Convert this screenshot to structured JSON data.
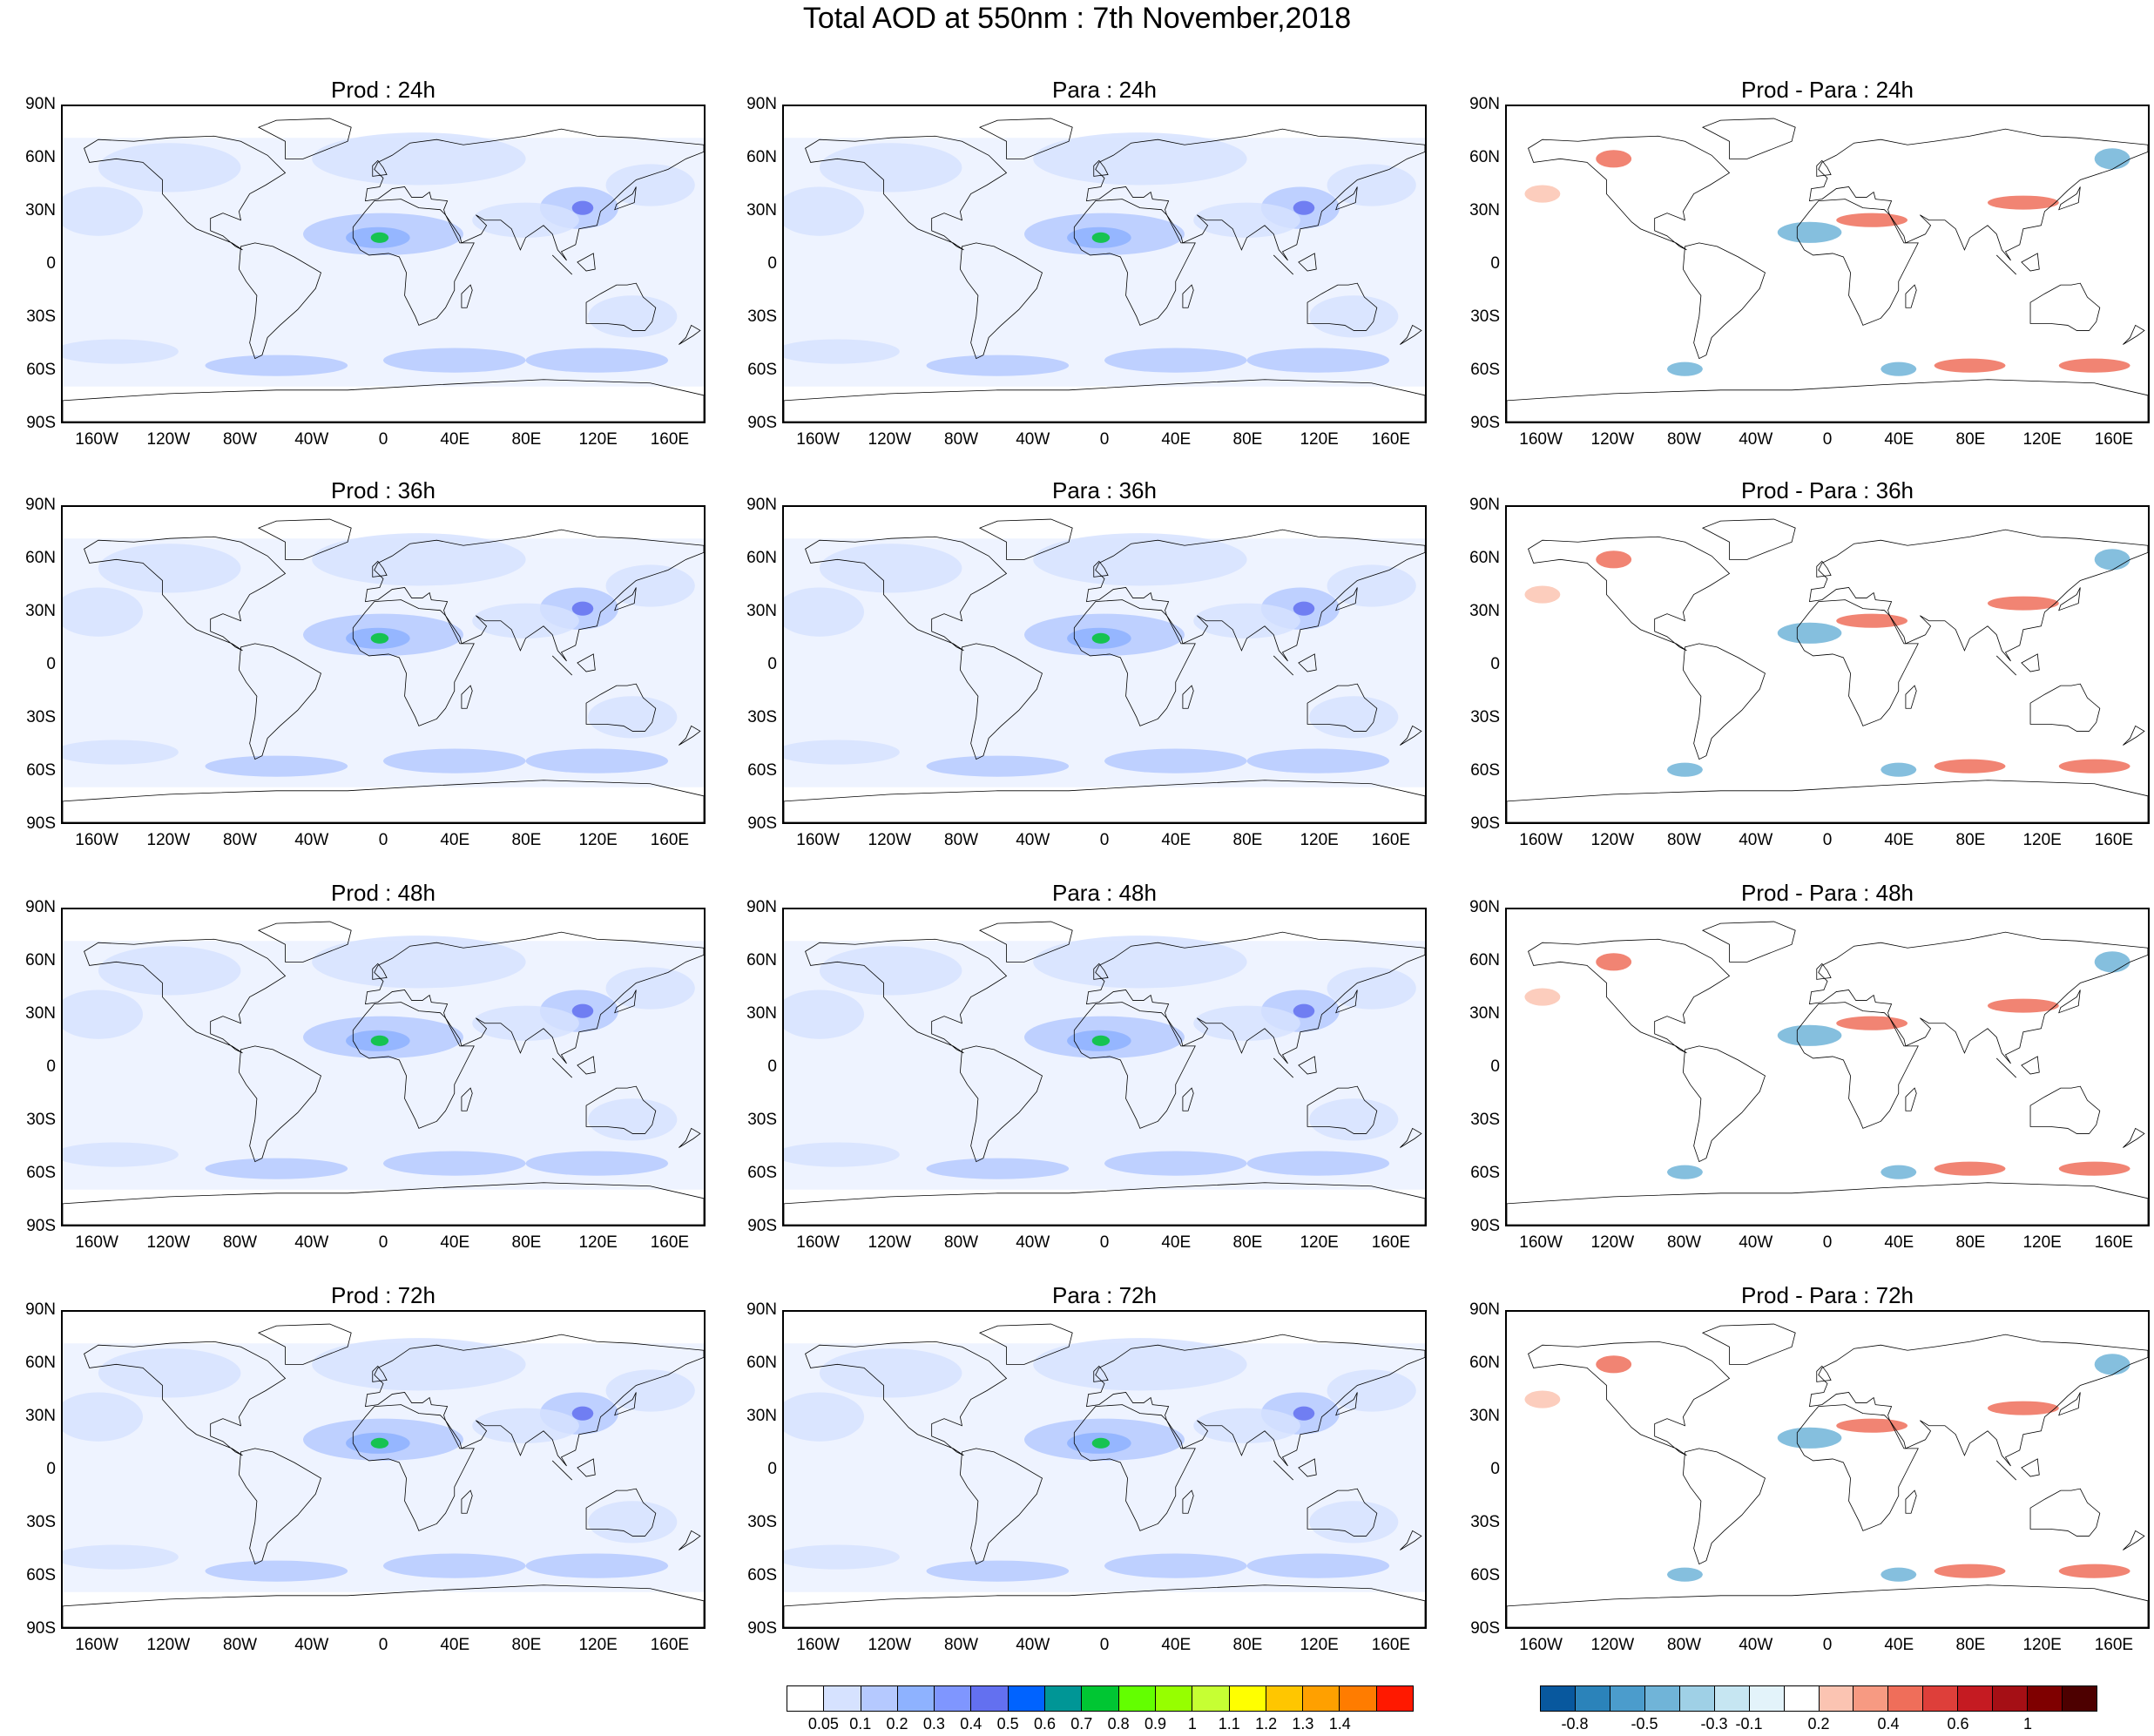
{
  "title": "Total AOD at 550nm : 7th November,2018",
  "lat_labels": [
    "90N",
    "60N",
    "30N",
    "0",
    "30S",
    "60S",
    "90S"
  ],
  "lon_labels": [
    "160W",
    "120W",
    "80W",
    "40W",
    "0",
    "40E",
    "80E",
    "120E",
    "160E"
  ],
  "panels": [
    {
      "title": "Prod : 24h",
      "kind": "aod"
    },
    {
      "title": "Para : 24h",
      "kind": "aod"
    },
    {
      "title": "Prod - Para : 24h",
      "kind": "diff"
    },
    {
      "title": "Prod : 36h",
      "kind": "aod"
    },
    {
      "title": "Para : 36h",
      "kind": "aod"
    },
    {
      "title": "Prod - Para : 36h",
      "kind": "diff"
    },
    {
      "title": "Prod : 48h",
      "kind": "aod"
    },
    {
      "title": "Para : 48h",
      "kind": "aod"
    },
    {
      "title": "Prod - Para : 48h",
      "kind": "diff"
    },
    {
      "title": "Prod : 72h",
      "kind": "aod"
    },
    {
      "title": "Para : 72h",
      "kind": "aod"
    },
    {
      "title": "Prod - Para : 72h",
      "kind": "diff"
    }
  ],
  "aod_colorbar": {
    "labels": [
      "0.05",
      "0.1",
      "0.2",
      "0.3",
      "0.4",
      "0.5",
      "0.6",
      "0.7",
      "0.8",
      "0.9",
      "1",
      "1.1",
      "1.2",
      "1.3",
      "1.4"
    ],
    "colors": [
      "#ffffff",
      "#d6e2ff",
      "#b5c9ff",
      "#8eb2ff",
      "#7f96ff",
      "#6370f0",
      "#0063ff",
      "#009696",
      "#00c633",
      "#63ff00",
      "#96ff00",
      "#c6ff33",
      "#ffff00",
      "#ffc600",
      "#ffa000",
      "#ff7c00",
      "#ff1900"
    ]
  },
  "diff_colorbar": {
    "labels": [
      "-0.8",
      "-0.5",
      "-0.3",
      "-0.1",
      "0.2",
      "0.4",
      "0.6",
      "1"
    ],
    "colors": [
      "#08589e",
      "#2b83ba",
      "#4b9ccc",
      "#70b4d8",
      "#9fd0e6",
      "#c6e6f2",
      "#e3f3fa",
      "#ffffff",
      "#fbc4b2",
      "#f79a82",
      "#ef6e5a",
      "#de3f3a",
      "#c51b22",
      "#a50f15",
      "#7f0000",
      "#4d0000"
    ]
  },
  "colors": {
    "land_outline": "#000000",
    "aod_base": "#d6e2ff",
    "aod_mid": "#8eb2ff",
    "diff_pos": "#ef6e5a",
    "diff_neg": "#4b9ccc"
  }
}
